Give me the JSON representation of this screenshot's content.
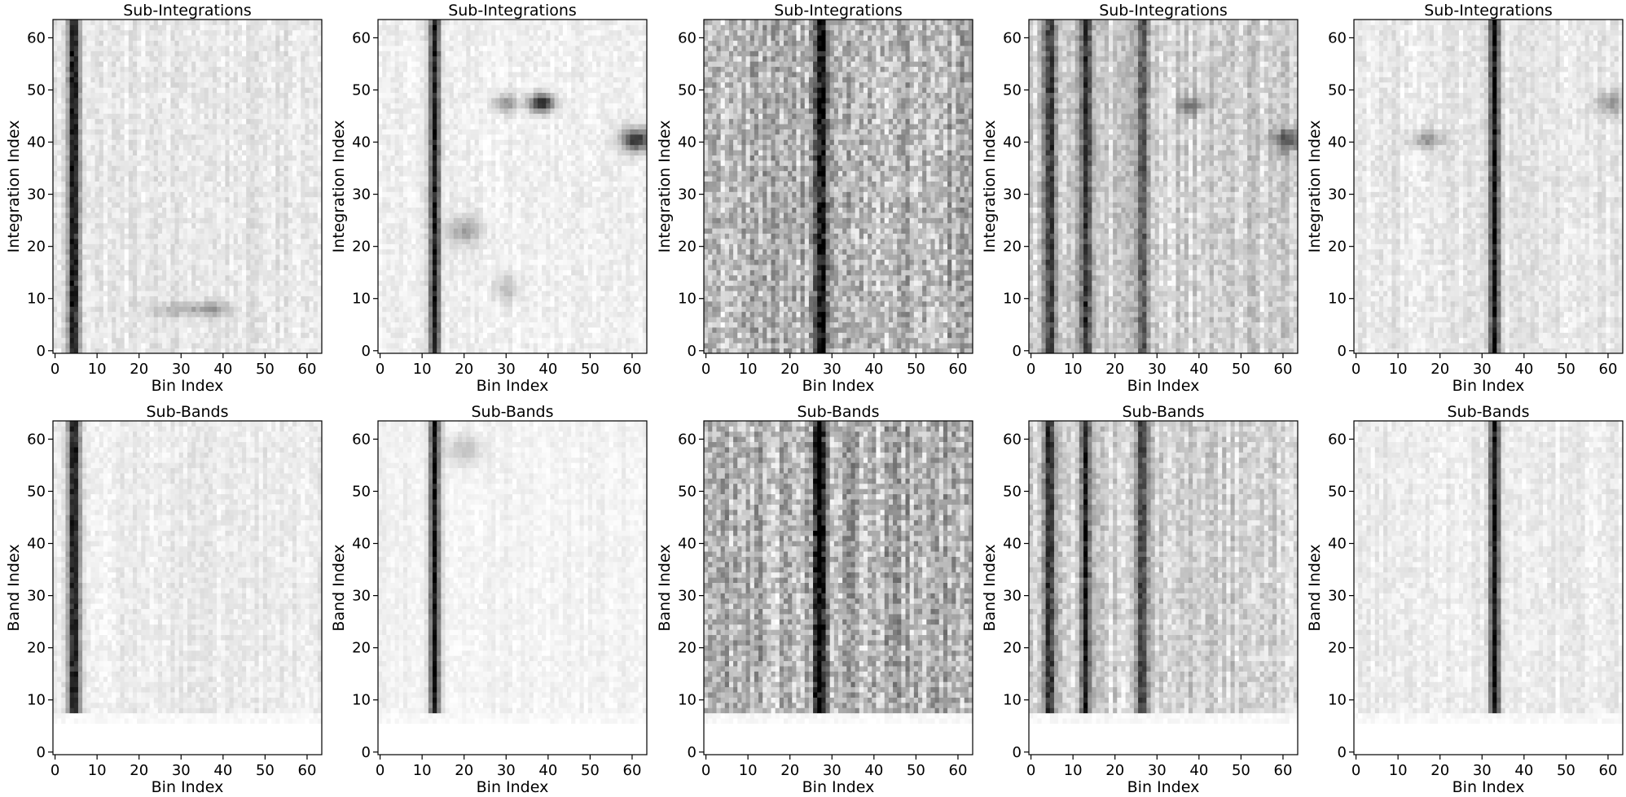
{
  "chart_data": [
    {
      "type": "heatmap",
      "colormap": "gray_r",
      "title": "Sub-Integrations",
      "xlabel": "Bin Index",
      "ylabel": "Integration Index",
      "xlim": [
        0,
        63
      ],
      "ylim": [
        0,
        63
      ],
      "xticks": [
        0,
        10,
        20,
        30,
        40,
        50,
        60
      ],
      "yticks": [
        0,
        10,
        20,
        30,
        40,
        50,
        60
      ],
      "pattern": {
        "peaks": [
          4.5
        ],
        "peak_widths": [
          1.0
        ],
        "peak_strengths": [
          0.95
        ],
        "background": 0.1,
        "noise": 0.12,
        "blanked_rows_below": 0,
        "blobs": [
          [
            38,
            8,
            3,
            1,
            0.25
          ],
          [
            30,
            8,
            6,
            1,
            0.2
          ]
        ]
      }
    },
    {
      "type": "heatmap",
      "colormap": "gray_r",
      "title": "Sub-Integrations",
      "xlabel": "Bin Index",
      "ylabel": "Integration Index",
      "xlim": [
        0,
        63
      ],
      "ylim": [
        0,
        63
      ],
      "xticks": [
        0,
        10,
        20,
        30,
        40,
        50,
        60
      ],
      "yticks": [
        0,
        10,
        20,
        30,
        40,
        50,
        60
      ],
      "pattern": {
        "peaks": [
          13
        ],
        "peak_widths": [
          0.9
        ],
        "peak_strengths": [
          0.95
        ],
        "background": 0.06,
        "noise": 0.1,
        "blanked_rows_below": 0,
        "blobs": [
          [
            38.5,
            47.5,
            2,
            1.2,
            0.85
          ],
          [
            30,
            47.5,
            2,
            1.2,
            0.35
          ],
          [
            61,
            40.5,
            2.5,
            1.5,
            0.8
          ],
          [
            20,
            23,
            3,
            2,
            0.3
          ],
          [
            30,
            12,
            2,
            2,
            0.2
          ]
        ]
      }
    },
    {
      "type": "heatmap",
      "colormap": "gray_r",
      "title": "Sub-Integrations",
      "xlabel": "Bin Index",
      "ylabel": "Integration Index",
      "xlim": [
        0,
        63
      ],
      "ylim": [
        0,
        63
      ],
      "xticks": [
        0,
        10,
        20,
        30,
        40,
        50,
        60
      ],
      "yticks": [
        0,
        10,
        20,
        30,
        40,
        50,
        60
      ],
      "pattern": {
        "peaks": [
          27.5
        ],
        "peak_widths": [
          1.1
        ],
        "peak_strengths": [
          0.9
        ],
        "background": 0.3,
        "noise": 0.35,
        "blanked_rows_below": 0,
        "blobs": []
      }
    },
    {
      "type": "heatmap",
      "colormap": "gray_r",
      "title": "Sub-Integrations",
      "xlabel": "Bin Index",
      "ylabel": "Integration Index",
      "xlim": [
        0,
        63
      ],
      "ylim": [
        0,
        63
      ],
      "xticks": [
        0,
        10,
        20,
        30,
        40,
        50,
        60
      ],
      "yticks": [
        0,
        10,
        20,
        30,
        40,
        50,
        60
      ],
      "pattern": {
        "peaks": [
          4.5,
          13,
          26.5
        ],
        "peak_widths": [
          1.0,
          0.9,
          1.0
        ],
        "peak_strengths": [
          0.7,
          0.75,
          0.6
        ],
        "background": 0.2,
        "noise": 0.2,
        "blanked_rows_below": 0,
        "blobs": [
          [
            38,
            47,
            2,
            1.2,
            0.45
          ],
          [
            61,
            40.5,
            2.5,
            1.5,
            0.5
          ]
        ]
      }
    },
    {
      "type": "heatmap",
      "colormap": "gray_r",
      "title": "Sub-Integrations",
      "xlabel": "Bin Index",
      "ylabel": "Integration Index",
      "xlim": [
        0,
        63
      ],
      "ylim": [
        0,
        63
      ],
      "xticks": [
        0,
        10,
        20,
        30,
        40,
        50,
        60
      ],
      "yticks": [
        0,
        10,
        20,
        30,
        40,
        50,
        60
      ],
      "pattern": {
        "peaks": [
          33
        ],
        "peak_widths": [
          0.9
        ],
        "peak_strengths": [
          0.95
        ],
        "background": 0.1,
        "noise": 0.12,
        "blanked_rows_below": 0,
        "blobs": [
          [
            17,
            40.5,
            2.5,
            1.2,
            0.35
          ],
          [
            61,
            47.5,
            2.5,
            1.5,
            0.3
          ]
        ]
      }
    },
    {
      "type": "heatmap",
      "colormap": "gray_r",
      "title": "Sub-Bands",
      "xlabel": "Bin Index",
      "ylabel": "Band Index",
      "xlim": [
        0,
        63
      ],
      "ylim": [
        0,
        63
      ],
      "xticks": [
        0,
        10,
        20,
        30,
        40,
        50,
        60
      ],
      "yticks": [
        0,
        10,
        20,
        30,
        40,
        50,
        60
      ],
      "pattern": {
        "peaks": [
          4.5
        ],
        "peak_widths": [
          1.0
        ],
        "peak_strengths": [
          0.95
        ],
        "background": 0.08,
        "noise": 0.1,
        "blanked_rows_below": 8,
        "blobs": []
      }
    },
    {
      "type": "heatmap",
      "colormap": "gray_r",
      "title": "Sub-Bands",
      "xlabel": "Bin Index",
      "ylabel": "Band Index",
      "xlim": [
        0,
        63
      ],
      "ylim": [
        0,
        63
      ],
      "xticks": [
        0,
        10,
        20,
        30,
        40,
        50,
        60
      ],
      "yticks": [
        0,
        10,
        20,
        30,
        40,
        50,
        60
      ],
      "pattern": {
        "peaks": [
          13
        ],
        "peak_widths": [
          0.9
        ],
        "peak_strengths": [
          0.95
        ],
        "background": 0.05,
        "noise": 0.07,
        "blanked_rows_below": 8,
        "blobs": [
          [
            20,
            58,
            3,
            2,
            0.2
          ]
        ]
      }
    },
    {
      "type": "heatmap",
      "colormap": "gray_r",
      "title": "Sub-Bands",
      "xlabel": "Bin Index",
      "ylabel": "Band Index",
      "xlim": [
        0,
        63
      ],
      "ylim": [
        0,
        63
      ],
      "xticks": [
        0,
        10,
        20,
        30,
        40,
        50,
        60
      ],
      "yticks": [
        0,
        10,
        20,
        30,
        40,
        50,
        60
      ],
      "pattern": {
        "peaks": [
          27
        ],
        "peak_widths": [
          1.1
        ],
        "peak_strengths": [
          0.9
        ],
        "background": 0.32,
        "noise": 0.35,
        "blanked_rows_below": 8,
        "blobs": []
      }
    },
    {
      "type": "heatmap",
      "colormap": "gray_r",
      "title": "Sub-Bands",
      "xlabel": "Bin Index",
      "ylabel": "Band Index",
      "xlim": [
        0,
        63
      ],
      "ylim": [
        0,
        63
      ],
      "xticks": [
        0,
        10,
        20,
        30,
        40,
        50,
        60
      ],
      "yticks": [
        0,
        10,
        20,
        30,
        40,
        50,
        60
      ],
      "pattern": {
        "peaks": [
          4.5,
          13,
          26.5
        ],
        "peak_widths": [
          1.0,
          0.9,
          1.0
        ],
        "peak_strengths": [
          0.7,
          0.75,
          0.6
        ],
        "background": 0.2,
        "noise": 0.2,
        "blanked_rows_below": 8,
        "blobs": []
      }
    },
    {
      "type": "heatmap",
      "colormap": "gray_r",
      "title": "Sub-Bands",
      "xlabel": "Bin Index",
      "ylabel": "Band Index",
      "xlim": [
        0,
        63
      ],
      "ylim": [
        0,
        63
      ],
      "xticks": [
        0,
        10,
        20,
        30,
        40,
        50,
        60
      ],
      "yticks": [
        0,
        10,
        20,
        30,
        40,
        50,
        60
      ],
      "pattern": {
        "peaks": [
          33
        ],
        "peak_widths": [
          0.9
        ],
        "peak_strengths": [
          0.95
        ],
        "background": 0.08,
        "noise": 0.1,
        "blanked_rows_below": 8,
        "blobs": []
      }
    }
  ]
}
